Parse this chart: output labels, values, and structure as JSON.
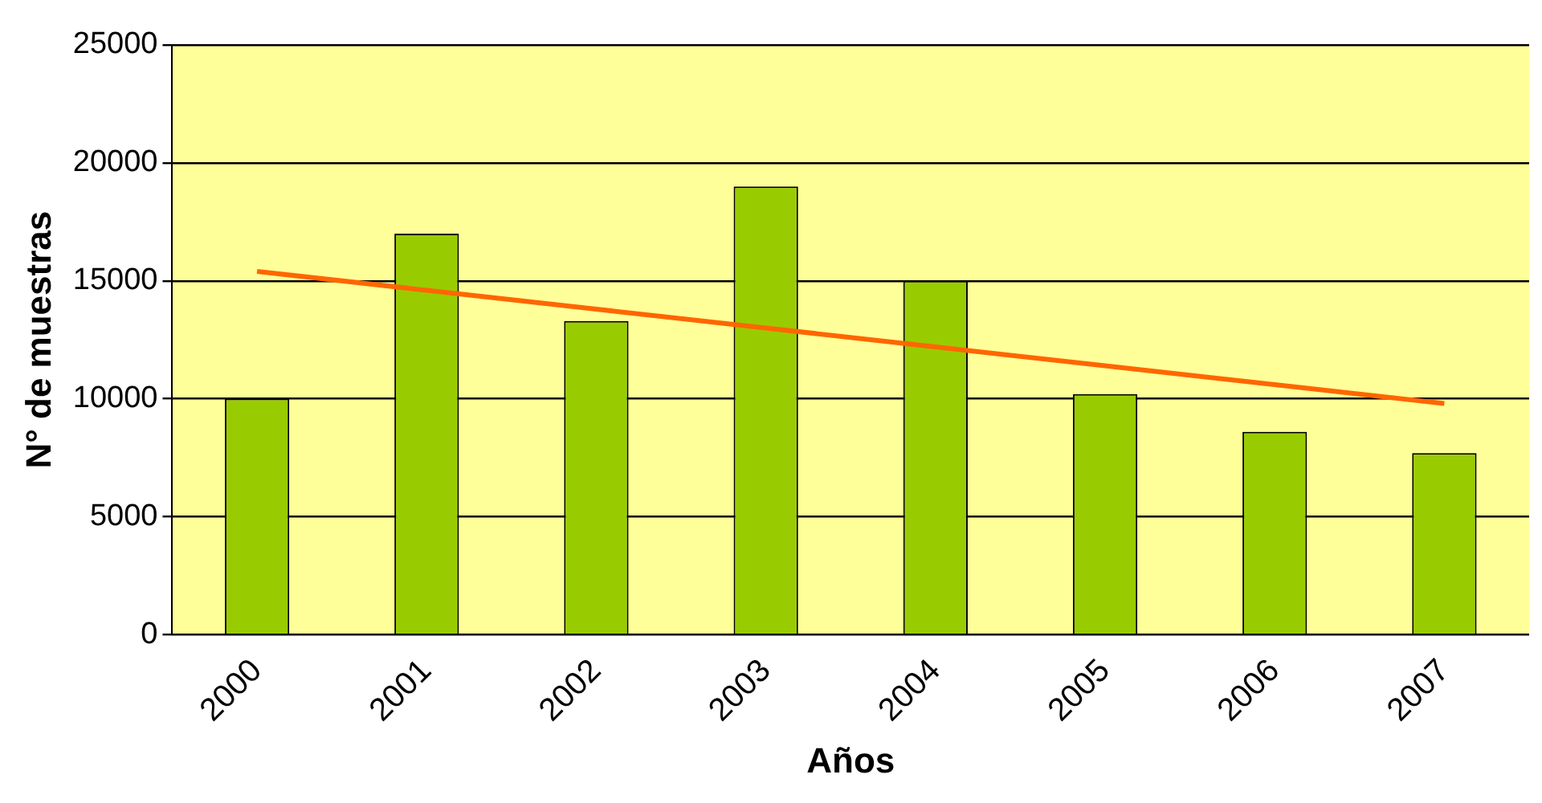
{
  "chart_data": {
    "type": "bar",
    "xlabel": "Años",
    "ylabel": "N° de muestras",
    "categories": [
      "2000",
      "2001",
      "2002",
      "2003",
      "2004",
      "2005",
      "2006",
      "2007"
    ],
    "series": [
      {
        "color": "#99cc00",
        "values": [
          10000,
          17000,
          13300,
          19000,
          15000,
          10200,
          8600,
          7700
        ]
      },
      {
        "type": "line",
        "color": "#ff6600",
        "marker": "none",
        "values": [
          15400,
          14600,
          13800,
          13000,
          12200,
          11400,
          10600,
          9800
        ]
      }
    ],
    "ylim": [
      0,
      25000
    ],
    "yticks": [
      0,
      5000,
      10000,
      15000,
      20000,
      25000
    ],
    "grid": "y",
    "legend": false
  }
}
